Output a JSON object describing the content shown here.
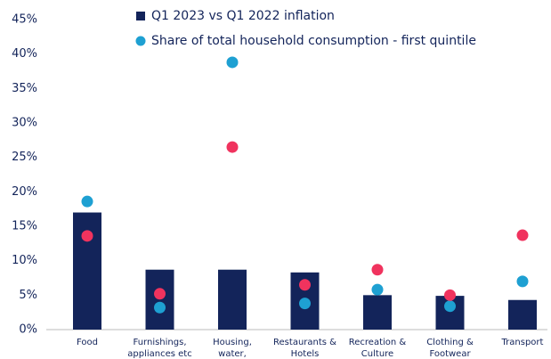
{
  "chart_data": {
    "type": "bar",
    "categories": [
      "Food",
      "Furnishings, appliances etc",
      "Housing, water, electricity etc",
      "Restaurants & Hotels",
      "Recreation & Culture",
      "Clothing & Footwear",
      "Transport"
    ],
    "series": [
      {
        "name": "Q1 2023 vs Q1 2022 inflation",
        "type": "bar",
        "color": "#13245a",
        "values": [
          17,
          8.7,
          8.7,
          8.3,
          5.0,
          4.9,
          4.3
        ]
      },
      {
        "name": "Share of total household consumption - first quintile",
        "type": "scatter",
        "color": "#1ea0d2",
        "values": [
          18.6,
          3.2,
          38.8,
          3.8,
          5.8,
          3.4,
          7.0
        ]
      },
      {
        "type": "scatter",
        "color": "#f0335e",
        "values": [
          13.6,
          5.2,
          26.5,
          6.5,
          8.7,
          5.0,
          13.7
        ]
      }
    ],
    "ylim": [
      0,
      45
    ],
    "yticks": [
      {
        "value": 0,
        "label": "0%"
      },
      {
        "value": 5,
        "label": "5%"
      },
      {
        "value": 10,
        "label": "10%"
      },
      {
        "value": 15,
        "label": "15%"
      },
      {
        "value": 20,
        "label": "20%"
      },
      {
        "value": 25,
        "label": "25%"
      },
      {
        "value": 30,
        "label": "30%"
      },
      {
        "value": 35,
        "label": "35%"
      },
      {
        "value": 40,
        "label": "40%"
      },
      {
        "value": 45,
        "label": "45%"
      }
    ],
    "grid": false
  }
}
